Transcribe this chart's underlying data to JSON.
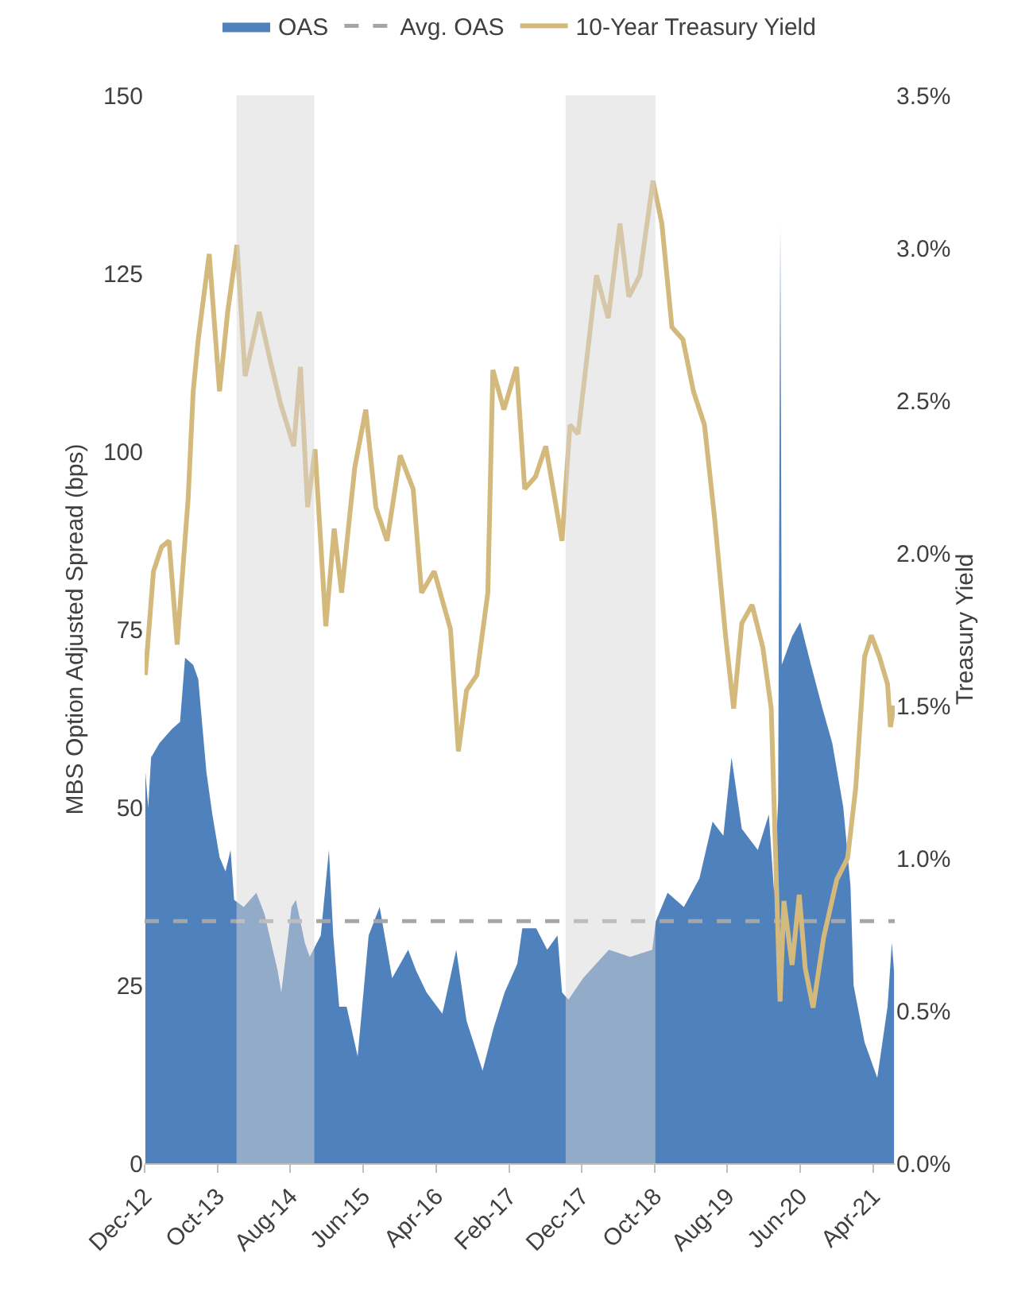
{
  "chart_data": {
    "type": "area",
    "ylabel": "MBS Option Adjusted Spread (bps)",
    "y2label": "Treasury Yield",
    "legend": "top",
    "xlim": [
      "2012-12-01",
      "2021-07-01"
    ],
    "xticks": [
      {
        "value": "2012-12-01",
        "label": "Dec-12"
      },
      {
        "value": "2013-10-01",
        "label": "Oct-13"
      },
      {
        "value": "2014-08-01",
        "label": "Aug-14"
      },
      {
        "value": "2015-06-01",
        "label": "Jun-15"
      },
      {
        "value": "2016-04-01",
        "label": "Apr-16"
      },
      {
        "value": "2017-02-01",
        "label": "Feb-17"
      },
      {
        "value": "2017-12-01",
        "label": "Dec-17"
      },
      {
        "value": "2018-10-01",
        "label": "Oct-18"
      },
      {
        "value": "2019-08-01",
        "label": "Aug-19"
      },
      {
        "value": "2020-06-01",
        "label": "Jun-20"
      },
      {
        "value": "2021-04-01",
        "label": "Apr-21"
      }
    ],
    "ylim": [
      0,
      150
    ],
    "yticks": [
      0,
      25,
      50,
      75,
      100,
      125,
      150
    ],
    "y2lim": [
      0,
      3.5
    ],
    "y2ticks": [
      {
        "value": 0,
        "label": "0.0%"
      },
      {
        "value": 0.5,
        "label": "0.5%"
      },
      {
        "value": 1,
        "label": "1.0%"
      },
      {
        "value": 1.5,
        "label": "1.5%"
      },
      {
        "value": 2,
        "label": "2.0%"
      },
      {
        "value": 2.5,
        "label": "2.5%"
      },
      {
        "value": 3,
        "label": "3.0%"
      },
      {
        "value": 3.5,
        "label": "3.5%"
      }
    ],
    "series": [
      {
        "name": "OAS",
        "color": "#4f81bd",
        "x": [
          "2012-12-04",
          "2012-12-16",
          "2012-12-28",
          "2013-02-01",
          "2013-03-25",
          "2013-04-28",
          "2013-05-19",
          "2013-06-22",
          "2013-07-13",
          "2013-08-16",
          "2013-09-10",
          "2013-10-10",
          "2013-11-04",
          "2013-11-25",
          "2013-12-10",
          "2014-01-19",
          "2014-03-13",
          "2014-04-16",
          "2014-06-10",
          "2014-06-25",
          "2014-08-07",
          "2014-08-25",
          "2014-10-01",
          "2014-10-22",
          "2014-12-07",
          "2015-01-10",
          "2015-01-28",
          "2015-02-22",
          "2015-03-25",
          "2015-05-10",
          "2015-06-25",
          "2015-08-10",
          "2015-10-01",
          "2015-12-07",
          "2016-01-10",
          "2016-02-22",
          "2016-04-28",
          "2016-06-25",
          "2016-08-07",
          "2016-10-13",
          "2016-11-28",
          "2017-01-13",
          "2017-03-07",
          "2017-03-28",
          "2017-05-25",
          "2017-07-10",
          "2017-08-22",
          "2017-09-10",
          "2017-10-07",
          "2017-12-07",
          "2018-03-25",
          "2018-06-22",
          "2018-09-22",
          "2018-10-07",
          "2018-11-25",
          "2019-02-01",
          "2019-04-07",
          "2019-06-01",
          "2019-07-16",
          "2019-08-19",
          "2019-10-01",
          "2019-12-07",
          "2020-01-22",
          "2020-02-13",
          "2020-03-01",
          "2020-03-07",
          "2020-03-10",
          "2020-03-16",
          "2020-04-28",
          "2020-06-01",
          "2020-07-16",
          "2020-09-01",
          "2020-10-13",
          "2020-11-28",
          "2020-12-28",
          "2021-01-10",
          "2021-02-25",
          "2021-04-19",
          "2021-06-01",
          "2021-06-19",
          "2021-06-28"
        ],
        "values": [
          55,
          50,
          57,
          59,
          61,
          62,
          71,
          70,
          68,
          55,
          49,
          43,
          41,
          44,
          37,
          36,
          38,
          35,
          27,
          24,
          36,
          37,
          31,
          29,
          32,
          44,
          32,
          22,
          22,
          15,
          32,
          36,
          26,
          30,
          27,
          24,
          21,
          30,
          20,
          13,
          19,
          24,
          28,
          33,
          33,
          30,
          32,
          24,
          23,
          26,
          30,
          29,
          30,
          34,
          38,
          36,
          40,
          48,
          46,
          57,
          47,
          44,
          49,
          38,
          51,
          105,
          132,
          70,
          74,
          76,
          70,
          64,
          59,
          50,
          39,
          25,
          17,
          12,
          22,
          31,
          27
        ]
      },
      {
        "name": "10-Year Treasury Yield",
        "type": "line",
        "axis": "y2",
        "color": "#d4b97c",
        "x": [
          "2012-12-04",
          "2013-01-07",
          "2013-02-10",
          "2013-03-13",
          "2013-04-16",
          "2013-06-01",
          "2013-06-22",
          "2013-07-13",
          "2013-08-28",
          "2013-10-10",
          "2013-11-13",
          "2013-12-22",
          "2014-01-25",
          "2014-03-25",
          "2014-05-10",
          "2014-06-22",
          "2014-08-16",
          "2014-09-13",
          "2014-10-13",
          "2014-11-13",
          "2014-12-28",
          "2015-02-01",
          "2015-03-04",
          "2015-04-28",
          "2015-06-13",
          "2015-07-25",
          "2015-09-10",
          "2015-11-04",
          "2015-12-28",
          "2016-02-01",
          "2016-03-25",
          "2016-06-01",
          "2016-07-04",
          "2016-08-07",
          "2016-09-19",
          "2016-11-04",
          "2016-11-25",
          "2017-01-10",
          "2017-03-04",
          "2017-04-07",
          "2017-05-22",
          "2017-07-04",
          "2017-09-10",
          "2017-10-13",
          "2017-11-16",
          "2018-02-01",
          "2018-03-22",
          "2018-05-10",
          "2018-06-16",
          "2018-08-01",
          "2018-09-25",
          "2018-11-01",
          "2018-12-13",
          "2019-01-28",
          "2019-03-13",
          "2019-04-28",
          "2019-06-10",
          "2019-07-25",
          "2019-08-28",
          "2019-10-01",
          "2019-11-13",
          "2019-12-28",
          "2020-02-01",
          "2020-03-05",
          "2020-03-09",
          "2020-03-25",
          "2020-04-28",
          "2020-05-28",
          "2020-06-22",
          "2020-07-25",
          "2020-09-07",
          "2020-11-01",
          "2020-12-16",
          "2021-01-19",
          "2021-02-25",
          "2021-03-25",
          "2021-04-28",
          "2021-06-01",
          "2021-06-13",
          "2021-06-28"
        ],
        "values": [
          1.6,
          1.94,
          2.02,
          2.04,
          1.7,
          2.18,
          2.53,
          2.7,
          2.98,
          2.53,
          2.79,
          3.01,
          2.58,
          2.79,
          2.63,
          2.49,
          2.35,
          2.61,
          2.15,
          2.34,
          1.76,
          2.08,
          1.87,
          2.28,
          2.47,
          2.15,
          2.04,
          2.32,
          2.21,
          1.87,
          1.94,
          1.75,
          1.35,
          1.55,
          1.6,
          1.87,
          2.6,
          2.47,
          2.61,
          2.21,
          2.25,
          2.35,
          2.04,
          2.42,
          2.39,
          2.91,
          2.77,
          3.08,
          2.84,
          2.91,
          3.22,
          3.08,
          2.74,
          2.7,
          2.53,
          2.42,
          2.11,
          1.73,
          1.49,
          1.77,
          1.83,
          1.69,
          1.49,
          0.62,
          0.53,
          0.86,
          0.65,
          0.88,
          0.64,
          0.51,
          0.74,
          0.93,
          1.0,
          1.23,
          1.66,
          1.73,
          1.66,
          1.57,
          1.43,
          1.5
        ]
      }
    ],
    "ref_lines": [
      {
        "axis": "y",
        "value": 34,
        "label": "Avg. OAS",
        "color": "#a6a6a6",
        "line_style": "dashed"
      }
    ],
    "bands": [
      {
        "axis": "x",
        "from": "2013-12-20",
        "to": "2014-11-10",
        "color": "#d6d6d6"
      },
      {
        "axis": "x",
        "from": "2017-09-25",
        "to": "2018-10-05",
        "color": "#d6d6d6"
      }
    ]
  }
}
